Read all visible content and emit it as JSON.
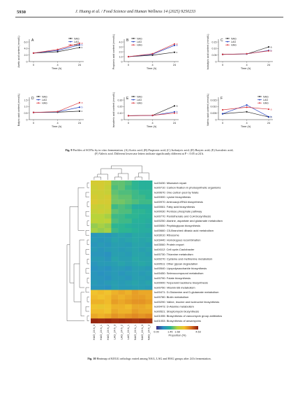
{
  "header": {
    "page_number": "5930",
    "running_head": "J. Huang et al. / Food Science and Human Wellness 14 (2025) 9250233"
  },
  "colors": {
    "NAG": "#222222",
    "LAG": "#1f3fbf",
    "HAG": "#d9363e"
  },
  "chart_data": [
    {
      "panel": "A",
      "type": "line",
      "ylabel": "Acetic acid content (mmol/L)",
      "xlabel": "Time (h)",
      "x": [
        "0",
        "4",
        "24"
      ],
      "ylim": [
        0,
        6.0
      ],
      "yticks": [
        "0",
        "2.0",
        "4.0",
        "6.0"
      ],
      "legend": "top-right",
      "series": [
        {
          "name": "NAG",
          "values": [
            2.6,
            3.0,
            4.3
          ],
          "letter": "c"
        },
        {
          "name": "LAG",
          "values": [
            2.6,
            3.4,
            5.1
          ],
          "letter": "b"
        },
        {
          "name": "HAG",
          "values": [
            2.6,
            3.7,
            5.6
          ],
          "letter": "a"
        }
      ]
    },
    {
      "panel": "B",
      "type": "line",
      "ylabel": "Propionic acid content (mmol/L)",
      "xlabel": "Time (h)",
      "x": [
        "0",
        "4",
        "24"
      ],
      "ylim": [
        0,
        4.0
      ],
      "yticks": [
        "0",
        "1.0",
        "2.0",
        "3.0",
        "4.0"
      ],
      "legend": "top-left",
      "series": [
        {
          "name": "NAG",
          "values": [
            1.0,
            1.3,
            1.9
          ],
          "letter": "c"
        },
        {
          "name": "LAG",
          "values": [
            1.0,
            1.5,
            3.3
          ],
          "letter": "b"
        },
        {
          "name": "HAG",
          "values": [
            1.0,
            1.6,
            3.6
          ],
          "letter": "a"
        }
      ]
    },
    {
      "panel": "C",
      "type": "line",
      "ylabel": "Isobutyric acid content (mmol/L)",
      "xlabel": "Time (h)",
      "x": [
        "0",
        "4",
        "24"
      ],
      "ylim": [
        0,
        0.15
      ],
      "yticks": [
        "0",
        "0.05",
        "0.10",
        "0.15"
      ],
      "legend": "top-left",
      "series": [
        {
          "name": "NAG",
          "values": [
            0.055,
            0.058,
            0.112
          ],
          "letter": "a"
        },
        {
          "name": "LAG",
          "values": [
            0.055,
            0.059,
            0.085
          ],
          "letter": "b"
        },
        {
          "name": "HAG",
          "values": [
            0.055,
            0.06,
            0.082
          ],
          "letter": "b"
        }
      ]
    },
    {
      "panel": "D",
      "type": "line",
      "ylabel": "Butyric acid content (mmol/L)",
      "xlabel": "Time (h)",
      "x": [
        "0",
        "4",
        "24"
      ],
      "ylim": [
        0,
        1.5
      ],
      "yticks": [
        "0",
        "0.5",
        "1.0",
        "1.5"
      ],
      "legend": "top-left",
      "series": [
        {
          "name": "NAG",
          "values": [
            0.55,
            0.57,
            0.65
          ],
          "letter": "c"
        },
        {
          "name": "LAG",
          "values": [
            0.55,
            0.6,
            0.95
          ],
          "letter": "b"
        },
        {
          "name": "HAG",
          "values": [
            0.55,
            0.62,
            1.3
          ],
          "letter": "a"
        }
      ]
    },
    {
      "panel": "E",
      "type": "line",
      "ylabel": "Isovaleric acid content (mmol/L)",
      "xlabel": "Time (h)",
      "x": [
        "0",
        "4",
        "24"
      ],
      "ylim": [
        0,
        0.3
      ],
      "yticks": [
        "0",
        "0.10",
        "0.20",
        "0.30"
      ],
      "legend": "top-left",
      "series": [
        {
          "name": "NAG",
          "values": [
            0.06,
            0.065,
            0.21
          ],
          "letter": "a"
        },
        {
          "name": "LAG",
          "values": [
            0.06,
            0.063,
            0.12
          ],
          "letter": "b"
        },
        {
          "name": "HAG",
          "values": [
            0.06,
            0.066,
            0.1
          ],
          "letter": "b"
        }
      ]
    },
    {
      "panel": "F",
      "type": "line",
      "ylabel": "Valeric acid content (mmol/L)",
      "xlabel": "Time (h)",
      "x": [
        "0",
        "4",
        "24"
      ],
      "ylim": [
        0,
        0.015
      ],
      "yticks": [
        "0",
        "0.005",
        "0.010",
        "0.015"
      ],
      "legend": "top-right",
      "series": [
        {
          "name": "NAG",
          "values": [
            0.0045,
            0.006,
            0.002
          ],
          "letter": "b"
        },
        {
          "name": "LAG",
          "values": [
            0.0045,
            0.0112,
            0.0022
          ],
          "letter": "b"
        },
        {
          "name": "HAG",
          "values": [
            0.0075,
            0.0095,
            0.008
          ],
          "letter": "a"
        }
      ]
    },
    {
      "panel": "Fig10",
      "type": "heatmap",
      "columns": [
        "HAG_24 h_3",
        "HAG_24 h_1",
        "HAG_24 h_2",
        "LAG_24 h_3",
        "LAG_24 h_2",
        "LAG_24 h_1",
        "NAG_24 h_1",
        "NAG_24 h_3",
        "NAG_24 h_2"
      ],
      "colorbar": {
        "label": "Proportion (%)",
        "ticks": [
          "0.00",
          "1.45",
          "1.68",
          "4.63"
        ],
        "colors": [
          "#3b2a88",
          "#2a8fc4",
          "#28b496",
          "#b8d43a",
          "#f2c22c",
          "#d9701f",
          "#8c1b0e"
        ]
      },
      "rows": [
        {
          "label": "ko03430: Mismatch repair",
          "values": [
            0.58,
            0.58,
            0.56,
            0.4,
            0.4,
            0.38,
            0.34,
            0.32,
            0.32
          ]
        },
        {
          "label": "ko00710: Carbon fixation in photosynthetic organisms",
          "values": [
            0.56,
            0.58,
            0.54,
            0.38,
            0.4,
            0.36,
            0.34,
            0.32,
            0.32
          ]
        },
        {
          "label": "ko00670: One carbon pool by folate",
          "values": [
            0.56,
            0.56,
            0.54,
            0.4,
            0.38,
            0.38,
            0.36,
            0.34,
            0.34
          ]
        },
        {
          "label": "ko00300: Lysine biosynthesis",
          "values": [
            0.58,
            0.56,
            0.58,
            0.42,
            0.4,
            0.4,
            0.36,
            0.36,
            0.34
          ]
        },
        {
          "label": "ko00970: Aminoacyl-tRNA biosynthesis",
          "values": [
            0.6,
            0.58,
            0.58,
            0.42,
            0.42,
            0.4,
            0.38,
            0.36,
            0.36
          ]
        },
        {
          "label": "ko00061: Fatty acid biosynthesis",
          "values": [
            0.56,
            0.54,
            0.56,
            0.36,
            0.38,
            0.36,
            0.3,
            0.3,
            0.3
          ]
        },
        {
          "label": "ko00030: Pentose phosphate pathway",
          "values": [
            0.54,
            0.56,
            0.54,
            0.4,
            0.38,
            0.38,
            0.34,
            0.34,
            0.32
          ]
        },
        {
          "label": "ko00770: Pantothenate and CoA biosynthesis",
          "values": [
            0.5,
            0.5,
            0.48,
            0.36,
            0.36,
            0.34,
            0.34,
            0.32,
            0.32
          ]
        },
        {
          "label": "ko00250: Alanine, aspartate and glutamate metabolism",
          "values": [
            0.52,
            0.5,
            0.52,
            0.38,
            0.36,
            0.36,
            0.32,
            0.32,
            0.3
          ]
        },
        {
          "label": "ko00550: Peptidoglycan biosynthesis",
          "values": [
            0.46,
            0.48,
            0.46,
            0.34,
            0.34,
            0.32,
            0.3,
            0.3,
            0.28
          ]
        },
        {
          "label": "ko00660: C5-Branched dibasic acid metabolism",
          "values": [
            0.48,
            0.46,
            0.48,
            0.36,
            0.34,
            0.34,
            0.32,
            0.3,
            0.3
          ]
        },
        {
          "label": "ko03010: Ribosome",
          "values": [
            0.2,
            0.22,
            0.2,
            0.24,
            0.26,
            0.24,
            0.28,
            0.28,
            0.26
          ]
        },
        {
          "label": "ko03440: Homologous recombination",
          "values": [
            0.22,
            0.2,
            0.22,
            0.26,
            0.24,
            0.26,
            0.28,
            0.26,
            0.28
          ]
        },
        {
          "label": "ko03060: Protein export",
          "values": [
            0.2,
            0.22,
            0.2,
            0.24,
            0.24,
            0.22,
            0.26,
            0.26,
            0.24
          ]
        },
        {
          "label": "ko04112: Cell cycle-Caulobacter",
          "values": [
            0.22,
            0.2,
            0.22,
            0.24,
            0.22,
            0.24,
            0.26,
            0.24,
            0.26
          ]
        },
        {
          "label": "ko00730: Thiamine metabolism",
          "values": [
            0.2,
            0.2,
            0.18,
            0.24,
            0.24,
            0.22,
            0.26,
            0.26,
            0.24
          ]
        },
        {
          "label": "ko00270: Cysteine and methionine metabolism",
          "values": [
            0.22,
            0.22,
            0.2,
            0.26,
            0.24,
            0.24,
            0.28,
            0.26,
            0.26
          ]
        },
        {
          "label": "ko00511: Other glycan degradation",
          "values": [
            0.2,
            0.22,
            0.22,
            0.24,
            0.26,
            0.24,
            0.26,
            0.28,
            0.26
          ]
        },
        {
          "label": "ko00540: Lipopolysaccharide biosynthesis",
          "values": [
            0.18,
            0.2,
            0.18,
            0.22,
            0.22,
            0.2,
            0.24,
            0.24,
            0.22
          ]
        },
        {
          "label": "ko00450: Selenocompound metabolism",
          "values": [
            0.2,
            0.18,
            0.2,
            0.22,
            0.2,
            0.22,
            0.24,
            0.22,
            0.24
          ]
        },
        {
          "label": "ko00790: Folate biosynthesis",
          "values": [
            0.2,
            0.2,
            0.18,
            0.22,
            0.22,
            0.2,
            0.24,
            0.24,
            0.22
          ]
        },
        {
          "label": "ko00900: Terpenoid backbone biosynthesis",
          "values": [
            0.22,
            0.2,
            0.22,
            0.24,
            0.22,
            0.24,
            0.26,
            0.24,
            0.26
          ]
        },
        {
          "label": "ko00750: Vitamin B6 metabolism",
          "values": [
            0.2,
            0.2,
            0.18,
            0.24,
            0.22,
            0.22,
            0.24,
            0.24,
            0.22
          ]
        },
        {
          "label": "ko00471: D-Glutamine and D-glutamate metabolism",
          "values": [
            0.66,
            0.68,
            0.66,
            0.7,
            0.72,
            0.7,
            0.74,
            0.72,
            0.72
          ]
        },
        {
          "label": "ko00780: Biotin metabolism",
          "values": [
            0.68,
            0.66,
            0.68,
            0.72,
            0.7,
            0.72,
            0.74,
            0.74,
            0.72
          ]
        },
        {
          "label": "ko00290: Valine, leucine and isoleucine biosynthesis",
          "values": [
            0.7,
            0.7,
            0.68,
            0.74,
            0.72,
            0.74,
            0.76,
            0.76,
            0.74
          ]
        },
        {
          "label": "ko00473: D-Alanine metabolism",
          "values": [
            0.66,
            0.64,
            0.66,
            0.7,
            0.7,
            0.68,
            0.72,
            0.72,
            0.7
          ]
        },
        {
          "label": "ko00521: Streptomycin biosynthesis",
          "values": [
            0.68,
            0.68,
            0.66,
            0.72,
            0.7,
            0.7,
            0.74,
            0.72,
            0.72
          ]
        },
        {
          "label": "ko01055: Biosynthesis of vancomycin group antibiotics",
          "values": [
            0.72,
            0.7,
            0.72,
            0.76,
            0.74,
            0.76,
            0.78,
            0.76,
            0.78
          ]
        },
        {
          "label": "ko01053: Biosynthesis of ansamycins",
          "values": [
            0.98,
            0.97,
            0.98,
            0.96,
            0.97,
            0.96,
            0.95,
            0.96,
            0.95
          ]
        }
      ]
    }
  ],
  "fig9_caption": {
    "label": "Fig. 9",
    "line1": "Profiles of SCFAs by in vitro fermentation. (A) Acetic acid; (B) Propionic acid; (C) Isobutyric acid; (D) Butyric acid; (E) Isovaleric acid;",
    "line2": "(F) Valeric acid. Different lowercase letters indicate significantly different at P < 0.05 at 24 h."
  },
  "fig10_caption": {
    "label": "Fig. 10",
    "text": "Heatmap of KEGG orthologs varied among NAG, LAG and HAG groups after 24 h fermentation."
  }
}
